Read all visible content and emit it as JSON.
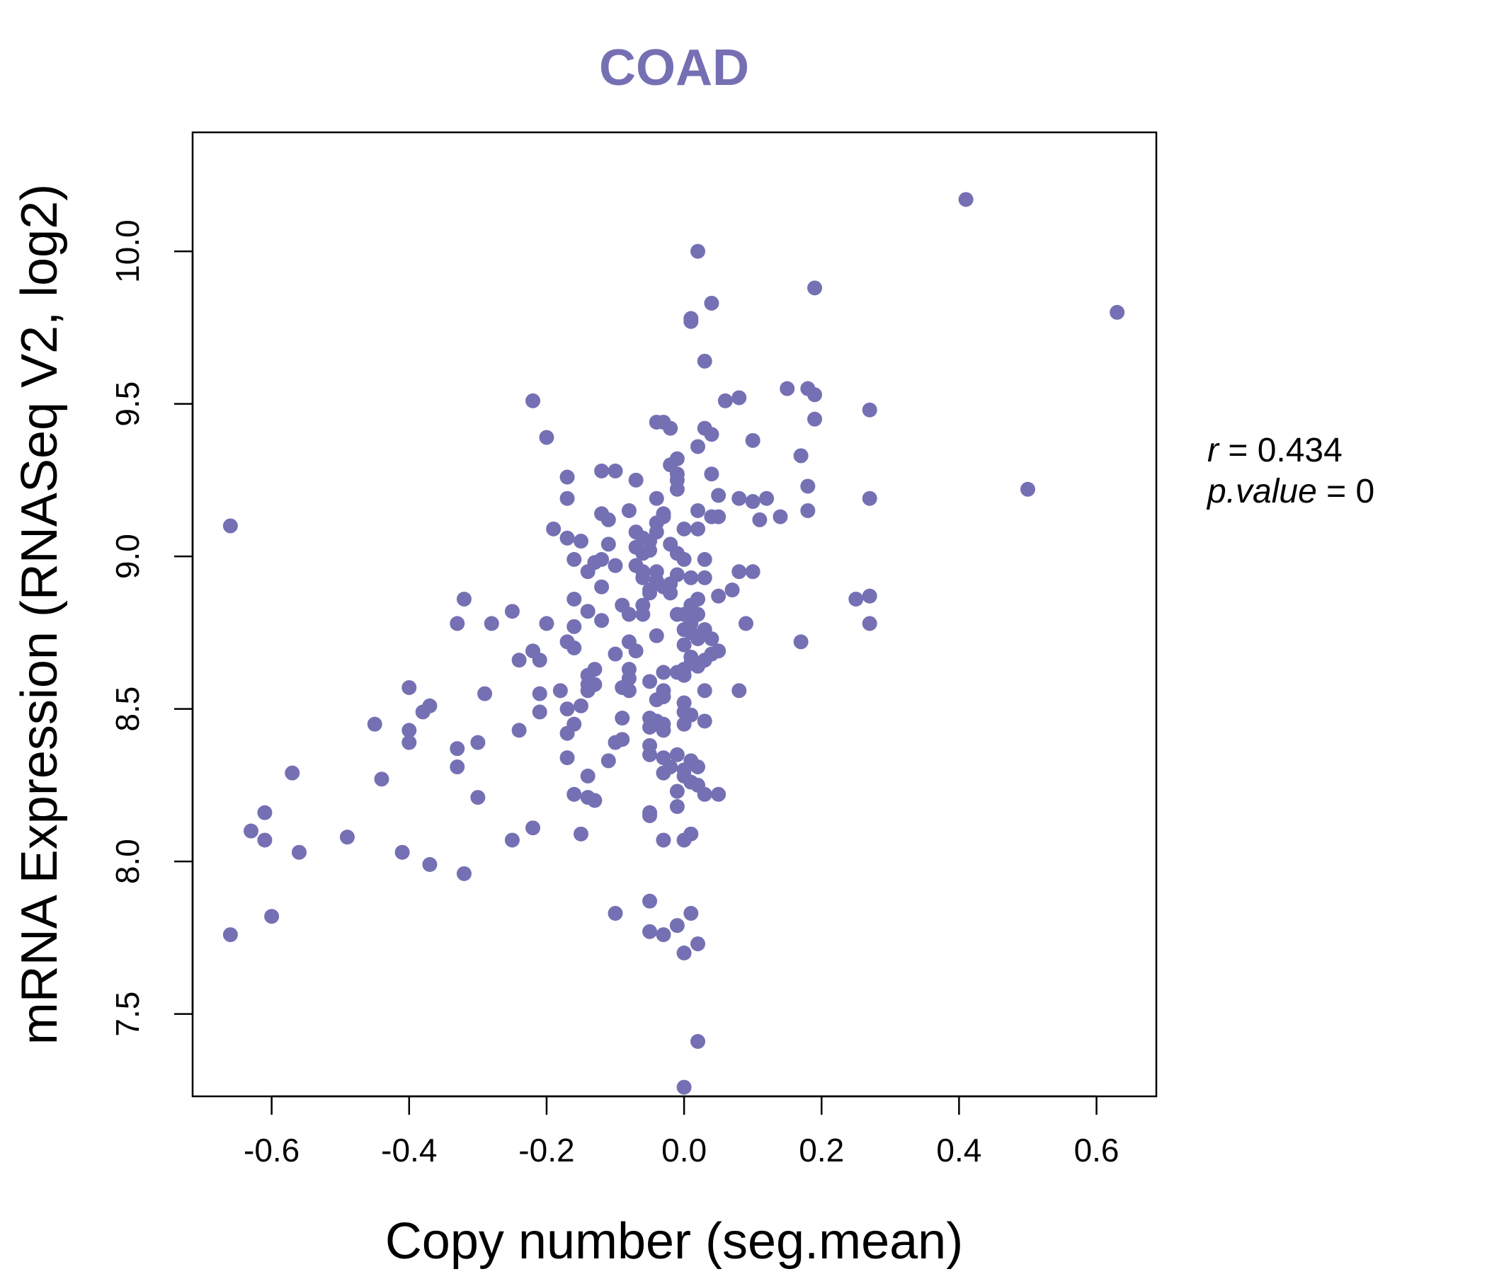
{
  "chart_data": {
    "type": "scatter",
    "title": "COAD",
    "xlabel": "Copy number (seg.mean)",
    "ylabel": "mRNA Expression (RNASeq V2, log2)",
    "xlim": [
      -0.715,
      0.687
    ],
    "ylim": [
      7.23,
      10.39
    ],
    "xticks": [
      -0.6,
      -0.4,
      -0.2,
      0.0,
      0.2,
      0.4,
      0.6
    ],
    "xtick_labels": [
      "-0.6",
      "-0.4",
      "-0.2",
      "0.0",
      "0.2",
      "0.4",
      "0.6"
    ],
    "yticks": [
      7.5,
      8.0,
      8.5,
      9.0,
      9.5,
      10.0
    ],
    "ytick_labels": [
      "7.5",
      "8.0",
      "8.5",
      "9.0",
      "9.5",
      "10.0"
    ],
    "grid": false,
    "point_color": "#7570b3",
    "annotation": {
      "r_label": "r",
      "r_value": "0.434",
      "p_label": "p.value",
      "p_value": "0"
    },
    "points": [
      [
        0.41,
        10.17
      ],
      [
        0.02,
        10.0
      ],
      [
        0.19,
        9.88
      ],
      [
        0.63,
        9.8
      ],
      [
        0.04,
        9.83
      ],
      [
        0.01,
        9.77
      ],
      [
        0.01,
        9.78
      ],
      [
        0.03,
        9.64
      ],
      [
        -0.22,
        9.51
      ],
      [
        0.15,
        9.55
      ],
      [
        0.18,
        9.55
      ],
      [
        0.19,
        9.53
      ],
      [
        0.08,
        9.52
      ],
      [
        0.06,
        9.51
      ],
      [
        0.27,
        9.48
      ],
      [
        0.19,
        9.45
      ],
      [
        -0.04,
        9.44
      ],
      [
        -0.03,
        9.44
      ],
      [
        -0.02,
        9.42
      ],
      [
        0.03,
        9.42
      ],
      [
        0.04,
        9.4
      ],
      [
        -0.2,
        9.39
      ],
      [
        0.1,
        9.38
      ],
      [
        0.02,
        9.36
      ],
      [
        0.17,
        9.33
      ],
      [
        -0.01,
        9.32
      ],
      [
        -0.02,
        9.3
      ],
      [
        -0.12,
        9.28
      ],
      [
        -0.1,
        9.28
      ],
      [
        -0.17,
        9.26
      ],
      [
        -0.07,
        9.25
      ],
      [
        -0.01,
        9.27
      ],
      [
        0.04,
        9.27
      ],
      [
        -0.01,
        9.25
      ],
      [
        0.18,
        9.23
      ],
      [
        0.5,
        9.22
      ],
      [
        -0.01,
        9.22
      ],
      [
        0.05,
        9.2
      ],
      [
        -0.17,
        9.19
      ],
      [
        -0.04,
        9.19
      ],
      [
        0.27,
        9.19
      ],
      [
        0.08,
        9.19
      ],
      [
        0.12,
        9.19
      ],
      [
        0.1,
        9.18
      ],
      [
        0.02,
        9.15
      ],
      [
        -0.03,
        9.14
      ],
      [
        -0.08,
        9.15
      ],
      [
        -0.12,
        9.14
      ],
      [
        0.18,
        9.15
      ],
      [
        0.04,
        9.13
      ],
      [
        -0.03,
        9.13
      ],
      [
        0.05,
        9.13
      ],
      [
        0.14,
        9.13
      ],
      [
        0.11,
        9.12
      ],
      [
        -0.11,
        9.12
      ],
      [
        -0.04,
        9.11
      ],
      [
        -0.19,
        9.09
      ],
      [
        -0.17,
        9.06
      ],
      [
        -0.15,
        9.05
      ],
      [
        -0.07,
        9.08
      ],
      [
        0.0,
        9.09
      ],
      [
        0.02,
        9.09
      ],
      [
        -0.04,
        9.08
      ],
      [
        -0.06,
        9.06
      ],
      [
        -0.05,
        9.05
      ],
      [
        -0.11,
        9.04
      ],
      [
        -0.02,
        9.04
      ],
      [
        -0.07,
        9.03
      ],
      [
        -0.05,
        9.02
      ],
      [
        -0.06,
        9.01
      ],
      [
        -0.01,
        9.01
      ],
      [
        0.0,
        8.99
      ],
      [
        0.03,
        8.99
      ],
      [
        -0.12,
        8.99
      ],
      [
        -0.16,
        8.99
      ],
      [
        -0.13,
        8.98
      ],
      [
        -0.07,
        8.97
      ],
      [
        -0.1,
        8.97
      ],
      [
        -0.06,
        8.95
      ],
      [
        0.08,
        8.95
      ],
      [
        0.1,
        8.95
      ],
      [
        -0.14,
        8.95
      ],
      [
        -0.04,
        8.95
      ],
      [
        -0.01,
        8.94
      ],
      [
        0.01,
        8.93
      ],
      [
        0.03,
        8.93
      ],
      [
        -0.06,
        8.93
      ],
      [
        -0.04,
        8.92
      ],
      [
        -0.02,
        8.91
      ],
      [
        -0.03,
        8.9
      ],
      [
        -0.05,
        8.89
      ],
      [
        -0.12,
        8.9
      ],
      [
        0.07,
        8.89
      ],
      [
        -0.05,
        8.88
      ],
      [
        -0.02,
        8.88
      ],
      [
        0.25,
        8.86
      ],
      [
        0.27,
        8.87
      ],
      [
        -0.16,
        8.86
      ],
      [
        -0.32,
        8.86
      ],
      [
        0.02,
        8.86
      ],
      [
        0.05,
        8.87
      ],
      [
        -0.06,
        8.84
      ],
      [
        -0.09,
        8.84
      ],
      [
        0.01,
        8.84
      ],
      [
        -0.25,
        8.82
      ],
      [
        -0.14,
        8.82
      ],
      [
        -0.08,
        8.81
      ],
      [
        -0.06,
        8.81
      ],
      [
        0.0,
        8.81
      ],
      [
        0.02,
        8.81
      ],
      [
        -0.01,
        8.81
      ],
      [
        -0.33,
        8.78
      ],
      [
        -0.28,
        8.78
      ],
      [
        -0.2,
        8.78
      ],
      [
        -0.12,
        8.79
      ],
      [
        0.09,
        8.78
      ],
      [
        0.27,
        8.78
      ],
      [
        0.01,
        8.78
      ],
      [
        0.03,
        8.76
      ],
      [
        -0.16,
        8.77
      ],
      [
        0.0,
        8.76
      ],
      [
        0.01,
        8.75
      ],
      [
        -0.04,
        8.74
      ],
      [
        0.04,
        8.73
      ],
      [
        0.02,
        8.73
      ],
      [
        -0.17,
        8.72
      ],
      [
        -0.08,
        8.72
      ],
      [
        0.17,
        8.72
      ],
      [
        0.0,
        8.71
      ],
      [
        -0.16,
        8.7
      ],
      [
        -0.22,
        8.69
      ],
      [
        -0.07,
        8.69
      ],
      [
        0.05,
        8.69
      ],
      [
        0.04,
        8.68
      ],
      [
        -0.1,
        8.68
      ],
      [
        0.01,
        8.67
      ],
      [
        -0.24,
        8.66
      ],
      [
        -0.21,
        8.66
      ],
      [
        0.03,
        8.66
      ],
      [
        0.01,
        8.65
      ],
      [
        0.02,
        8.64
      ],
      [
        -0.13,
        8.63
      ],
      [
        -0.08,
        8.63
      ],
      [
        0.0,
        8.63
      ],
      [
        -0.03,
        8.62
      ],
      [
        -0.01,
        8.62
      ],
      [
        0.0,
        8.61
      ],
      [
        -0.14,
        8.61
      ],
      [
        -0.08,
        8.6
      ],
      [
        -0.05,
        8.59
      ],
      [
        -0.14,
        8.58
      ],
      [
        -0.13,
        8.58
      ],
      [
        -0.09,
        8.57
      ],
      [
        -0.4,
        8.57
      ],
      [
        -0.08,
        8.56
      ],
      [
        0.03,
        8.56
      ],
      [
        -0.14,
        8.56
      ],
      [
        -0.03,
        8.56
      ],
      [
        0.08,
        8.56
      ],
      [
        -0.18,
        8.56
      ],
      [
        -0.29,
        8.55
      ],
      [
        -0.21,
        8.55
      ],
      [
        -0.03,
        8.54
      ],
      [
        -0.04,
        8.53
      ],
      [
        0.0,
        8.52
      ],
      [
        -0.15,
        8.51
      ],
      [
        -0.37,
        8.51
      ],
      [
        -0.21,
        8.49
      ],
      [
        -0.17,
        8.5
      ],
      [
        -0.38,
        8.49
      ],
      [
        0.0,
        8.49
      ],
      [
        0.01,
        8.48
      ],
      [
        -0.05,
        8.47
      ],
      [
        -0.04,
        8.46
      ],
      [
        -0.09,
        8.47
      ],
      [
        0.03,
        8.46
      ],
      [
        -0.45,
        8.45
      ],
      [
        -0.16,
        8.45
      ],
      [
        -0.03,
        8.45
      ],
      [
        -0.05,
        8.44
      ],
      [
        0.0,
        8.45
      ],
      [
        -0.4,
        8.43
      ],
      [
        -0.24,
        8.43
      ],
      [
        -0.03,
        8.43
      ],
      [
        -0.17,
        8.42
      ],
      [
        -0.09,
        8.4
      ],
      [
        -0.4,
        8.39
      ],
      [
        -0.3,
        8.39
      ],
      [
        -0.1,
        8.39
      ],
      [
        -0.05,
        8.38
      ],
      [
        -0.33,
        8.37
      ],
      [
        -0.05,
        8.35
      ],
      [
        -0.01,
        8.35
      ],
      [
        -0.03,
        8.34
      ],
      [
        -0.17,
        8.34
      ],
      [
        -0.11,
        8.33
      ],
      [
        0.01,
        8.33
      ],
      [
        -0.02,
        8.31
      ],
      [
        0.02,
        8.31
      ],
      [
        -0.33,
        8.31
      ],
      [
        0.0,
        8.3
      ],
      [
        -0.03,
        8.29
      ],
      [
        -0.57,
        8.29
      ],
      [
        -0.14,
        8.28
      ],
      [
        0.0,
        8.28
      ],
      [
        -0.44,
        8.27
      ],
      [
        0.01,
        8.26
      ],
      [
        0.02,
        8.25
      ],
      [
        -0.01,
        8.23
      ],
      [
        0.03,
        8.22
      ],
      [
        0.05,
        8.22
      ],
      [
        -0.16,
        8.22
      ],
      [
        -0.14,
        8.21
      ],
      [
        -0.3,
        8.21
      ],
      [
        -0.13,
        8.2
      ],
      [
        -0.01,
        8.18
      ],
      [
        -0.61,
        8.16
      ],
      [
        -0.05,
        8.16
      ],
      [
        -0.05,
        8.15
      ],
      [
        -0.22,
        8.11
      ],
      [
        -0.63,
        8.1
      ],
      [
        -0.15,
        8.09
      ],
      [
        0.01,
        8.09
      ],
      [
        -0.61,
        8.07
      ],
      [
        -0.25,
        8.07
      ],
      [
        -0.03,
        8.07
      ],
      [
        0.0,
        8.07
      ],
      [
        -0.49,
        8.08
      ],
      [
        -0.56,
        8.03
      ],
      [
        -0.41,
        8.03
      ],
      [
        -0.37,
        7.99
      ],
      [
        -0.32,
        7.96
      ],
      [
        -0.05,
        7.87
      ],
      [
        -0.1,
        7.83
      ],
      [
        0.01,
        7.83
      ],
      [
        -0.6,
        7.82
      ],
      [
        -0.01,
        7.79
      ],
      [
        -0.05,
        7.77
      ],
      [
        -0.03,
        7.76
      ],
      [
        -0.66,
        7.76
      ],
      [
        0.02,
        7.73
      ],
      [
        0.0,
        7.7
      ],
      [
        0.02,
        7.41
      ],
      [
        0.0,
        7.26
      ],
      [
        -0.66,
        9.1
      ]
    ]
  }
}
